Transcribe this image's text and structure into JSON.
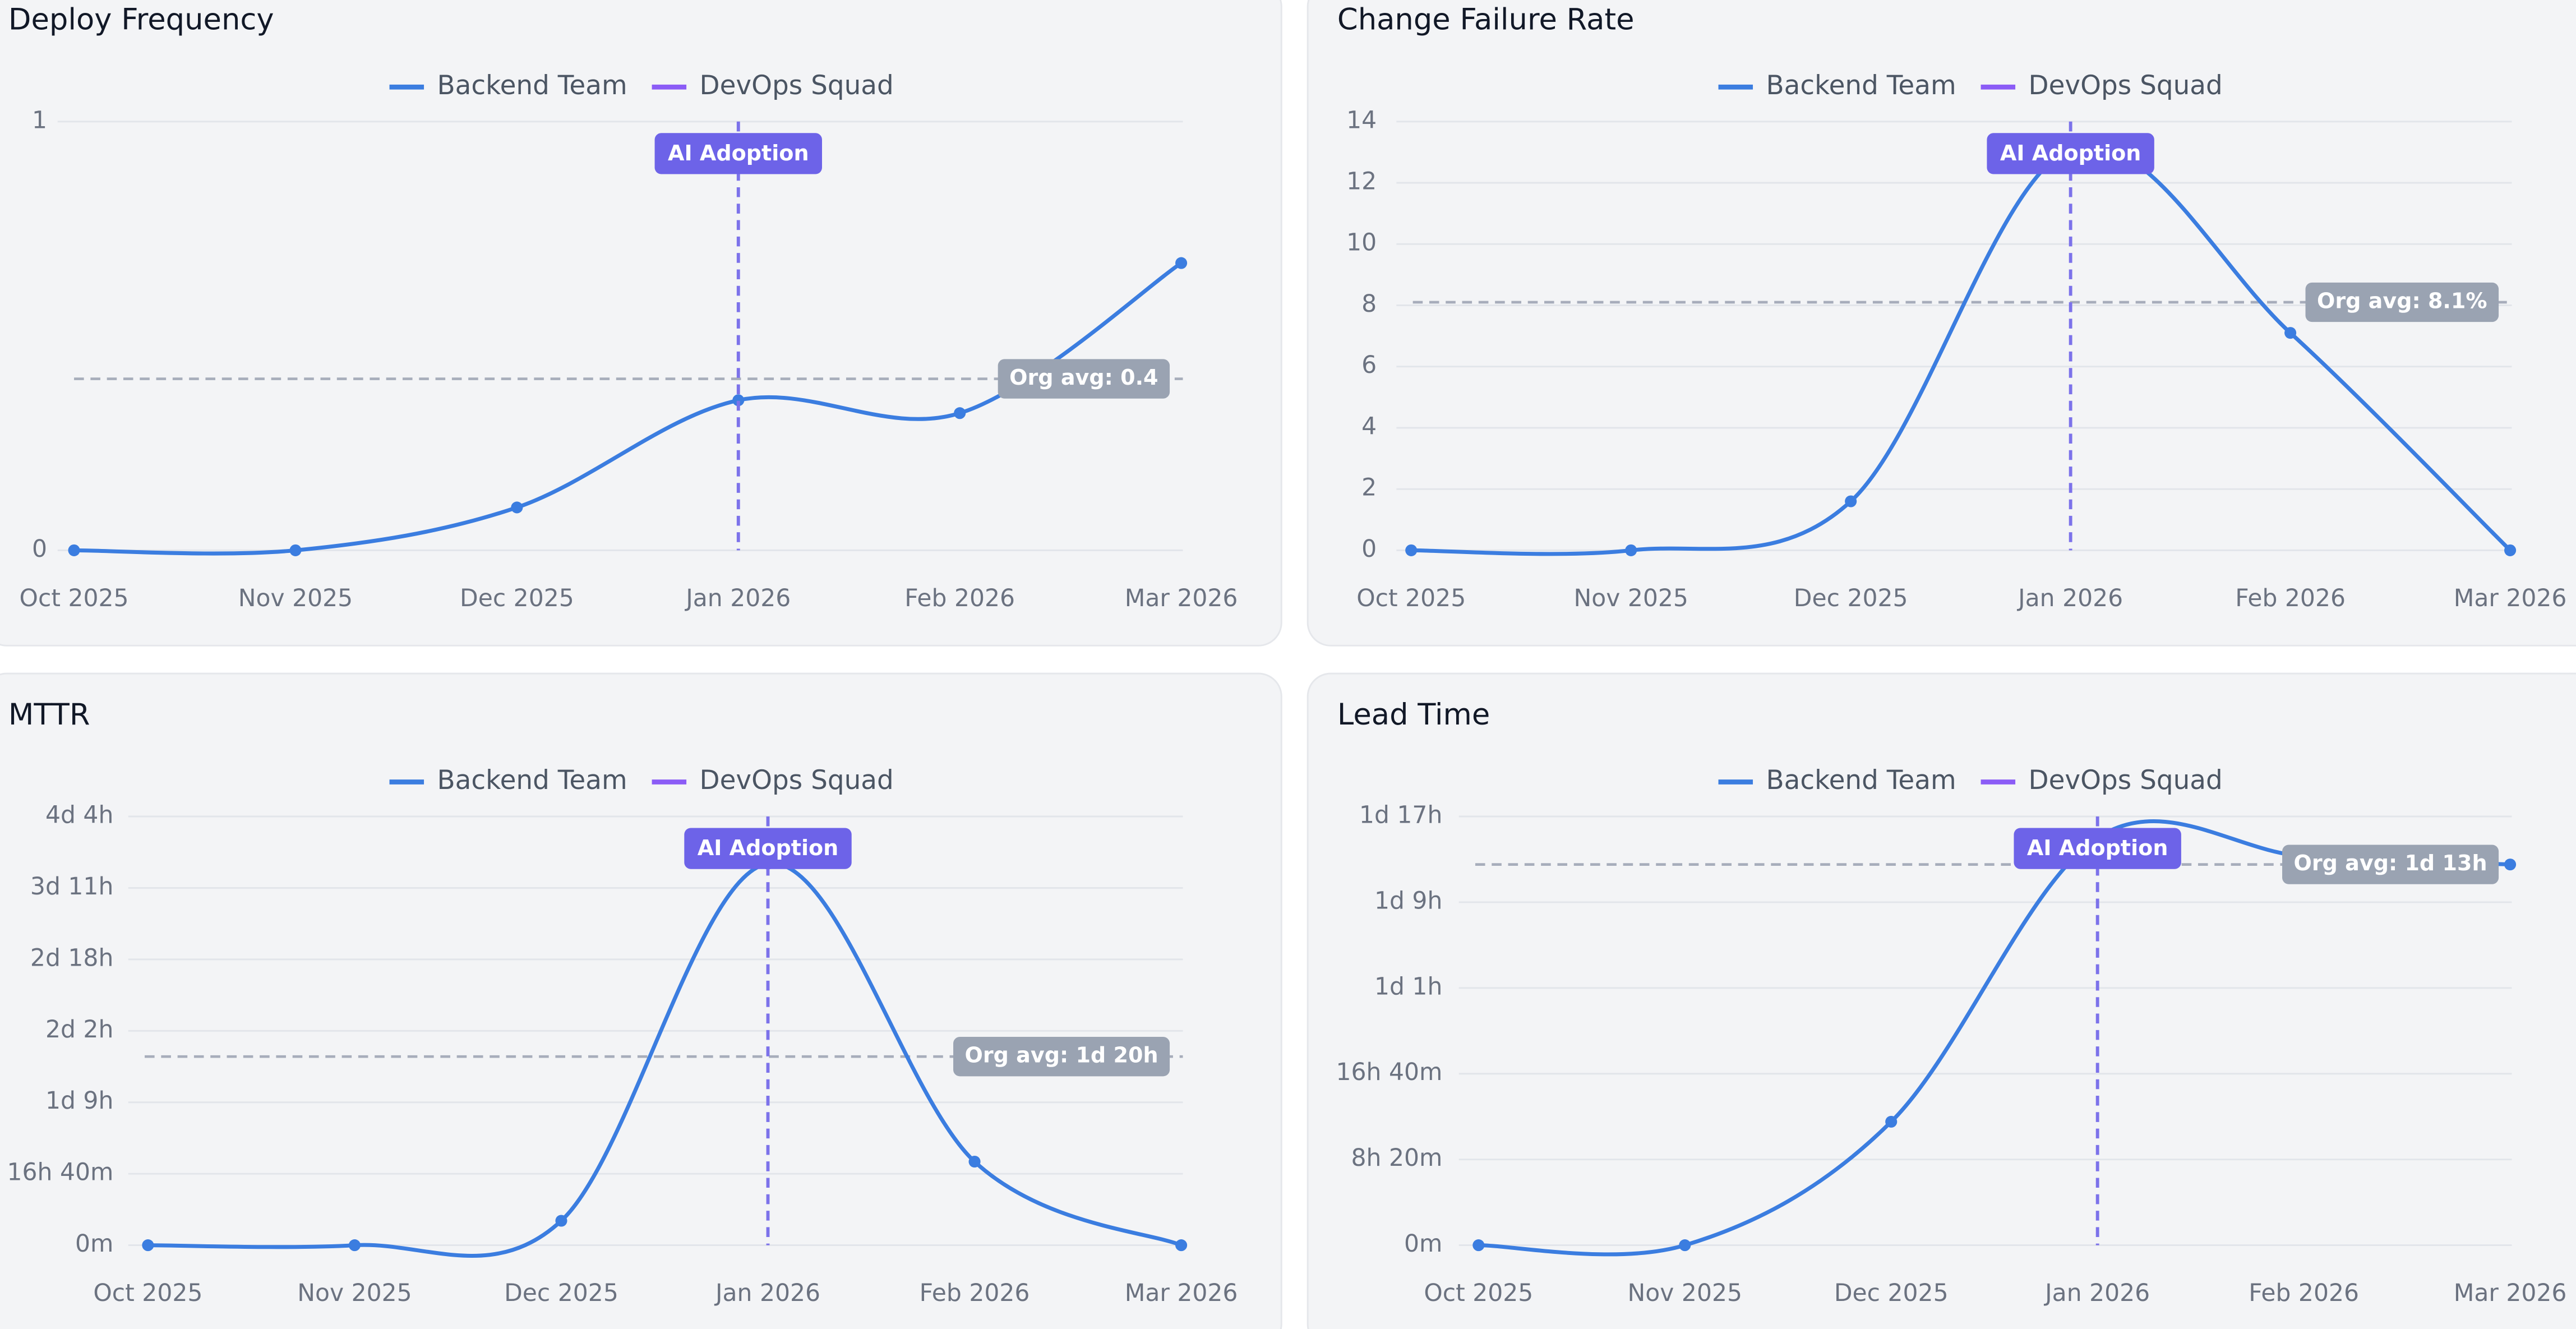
{
  "chart_data": [
    {
      "type": "line",
      "title": "Deploy Frequency",
      "categories": [
        "Oct 2025",
        "Nov 2025",
        "Dec 2025",
        "Jan 2026",
        "Feb 2026",
        "Mar 2026"
      ],
      "series": [
        {
          "name": "Backend Team",
          "color": "#3b7de0",
          "values": [
            0,
            0,
            0.1,
            0.35,
            0.32,
            0.67
          ]
        },
        {
          "name": "DevOps Squad",
          "color": "#8b5cf6",
          "values": [
            null,
            null,
            null,
            null,
            null,
            null
          ]
        }
      ],
      "ylim": [
        0,
        1
      ],
      "yticks": [
        0,
        1
      ],
      "grid": true,
      "vertical_marker": {
        "x": "Jan 2026",
        "label": "AI Adoption"
      },
      "reference_line": {
        "value": 0.4,
        "label": "Org avg: 0.4"
      }
    },
    {
      "type": "line",
      "title": "Change Failure Rate",
      "categories": [
        "Oct 2025",
        "Nov 2025",
        "Dec 2025",
        "Jan 2026",
        "Feb 2026",
        "Mar 2026"
      ],
      "series": [
        {
          "name": "Backend Team",
          "color": "#3b7de0",
          "values": [
            0,
            0,
            1.6,
            13.1,
            7.1,
            0
          ]
        },
        {
          "name": "DevOps Squad",
          "color": "#8b5cf6",
          "values": [
            null,
            null,
            null,
            null,
            null,
            null
          ]
        }
      ],
      "ylim": [
        0,
        14
      ],
      "yticks": [
        0,
        2,
        4,
        6,
        8,
        10,
        12,
        14
      ],
      "grid": true,
      "vertical_marker": {
        "x": "Jan 2026",
        "label": "AI Adoption"
      },
      "reference_line": {
        "value": 8.1,
        "label": "Org avg: 8.1%"
      }
    },
    {
      "type": "line",
      "title": "MTTR",
      "categories": [
        "Oct 2025",
        "Nov 2025",
        "Dec 2025",
        "Jan 2026",
        "Feb 2026",
        "Mar 2026"
      ],
      "series": [
        {
          "name": "Backend Team",
          "color": "#3b7de0",
          "values": [
            0,
            0,
            5.7,
            89,
            19.5,
            0
          ]
        },
        {
          "name": "DevOps Squad",
          "color": "#8b5cf6",
          "values": [
            null,
            null,
            null,
            null,
            null,
            null
          ]
        }
      ],
      "ylim": [
        0,
        100
      ],
      "yticks": [
        {
          "value": 0,
          "label": "0m"
        },
        {
          "value": 16.667,
          "label": "16h 40m"
        },
        {
          "value": 33.333,
          "label": "1d 9h"
        },
        {
          "value": 50,
          "label": "2d 2h"
        },
        {
          "value": 66.667,
          "label": "2d 18h"
        },
        {
          "value": 83.333,
          "label": "3d 11h"
        },
        {
          "value": 100,
          "label": "4d 4h"
        }
      ],
      "grid": true,
      "vertical_marker": {
        "x": "Jan 2026",
        "label": "AI Adoption"
      },
      "reference_line": {
        "value": 44,
        "label": "Org avg: 1d 20h"
      }
    },
    {
      "type": "line",
      "title": "Lead Time",
      "categories": [
        "Oct 2025",
        "Nov 2025",
        "Dec 2025",
        "Jan 2026",
        "Feb 2026",
        "Mar 2026"
      ],
      "series": [
        {
          "name": "Backend Team",
          "color": "#3b7de0",
          "values": [
            0,
            0,
            12,
            39.6,
            37.8,
            37
          ]
        },
        {
          "name": "DevOps Squad",
          "color": "#8b5cf6",
          "values": [
            null,
            null,
            null,
            null,
            null,
            null
          ]
        }
      ],
      "ylim": [
        0,
        41.667
      ],
      "yticks": [
        {
          "value": 0,
          "label": "0m"
        },
        {
          "value": 8.333,
          "label": "8h 20m"
        },
        {
          "value": 16.667,
          "label": "16h 40m"
        },
        {
          "value": 25,
          "label": "1d 1h"
        },
        {
          "value": 33.333,
          "label": "1d 9h"
        },
        {
          "value": 41.667,
          "label": "1d 17h"
        }
      ],
      "grid": true,
      "vertical_marker": {
        "x": "Jan 2026",
        "label": "AI Adoption"
      },
      "reference_line": {
        "value": 37,
        "label": "Org avg: 1d 13h"
      }
    }
  ]
}
